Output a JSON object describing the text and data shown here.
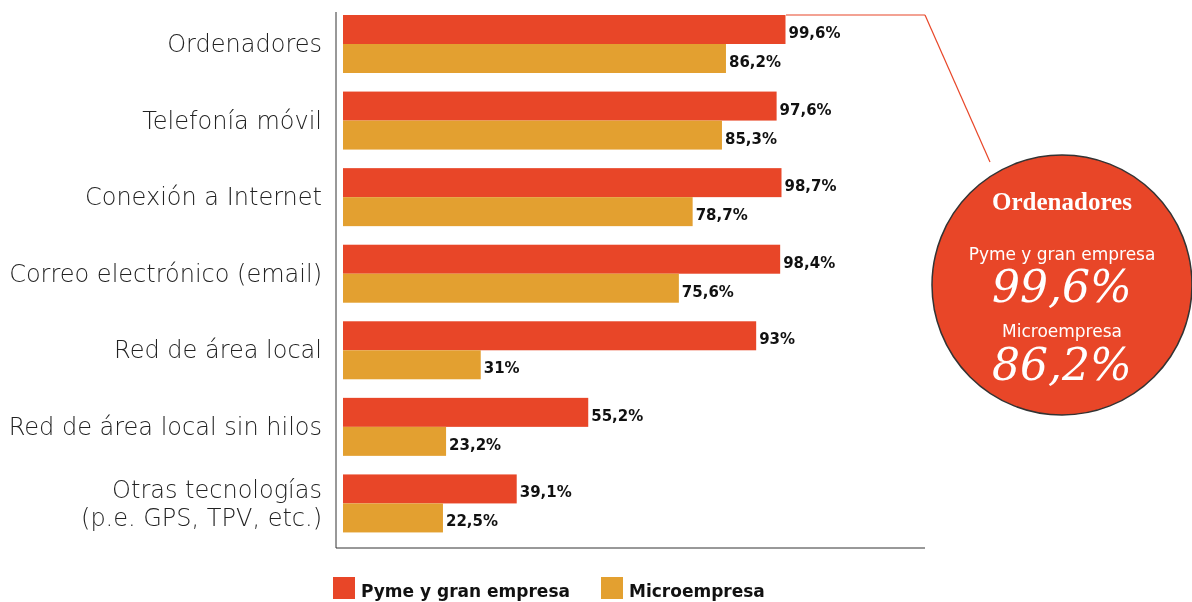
{
  "chart_data": {
    "type": "bar",
    "orientation": "horizontal",
    "categories": [
      "Ordenadores",
      "Telefonía móvil",
      "Conexión a Internet",
      "Correo electrónico (email)",
      "Red de área local",
      "Red de área local sin hilos",
      "Otras tecnologías\n(p.e. GPS, TPV, etc.)"
    ],
    "series": [
      {
        "name": "Pyme y gran empresa",
        "color": "#e84628",
        "values": [
          99.6,
          97.6,
          98.7,
          98.4,
          93,
          55.2,
          39.1
        ],
        "value_labels": [
          "99,6%",
          "97,6%",
          "98,7%",
          "98,4%",
          "93%",
          "55,2%",
          "39,1%"
        ]
      },
      {
        "name": "Microempresa",
        "color": "#e3a030",
        "values": [
          86.2,
          85.3,
          78.7,
          75.6,
          31,
          23.2,
          22.5
        ],
        "value_labels": [
          "86,2%",
          "85,3%",
          "78,7%",
          "75,6%",
          "31%",
          "23,2%",
          "22,5%"
        ]
      }
    ],
    "xlim": [
      0,
      131
    ],
    "legend": "bottom",
    "annotations": [
      "Ordenadores",
      "Pyme y gran empresa",
      "99,6%",
      "Microempresa",
      "86,2%"
    ]
  }
}
